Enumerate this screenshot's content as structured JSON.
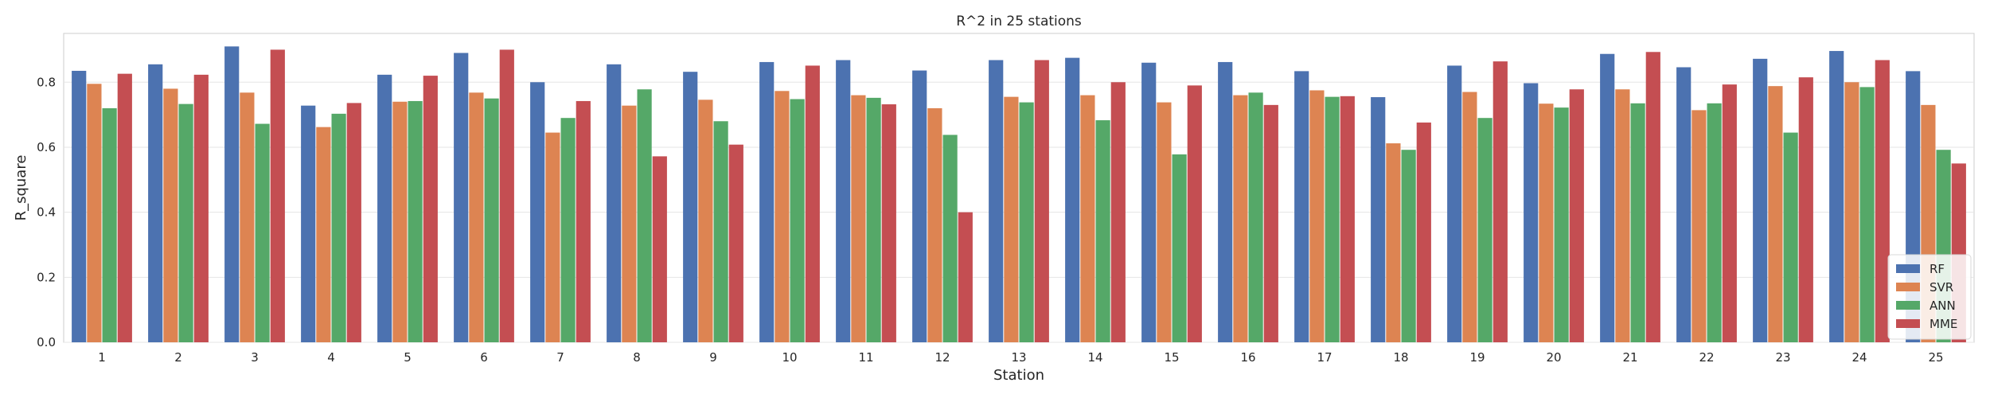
{
  "chart_data": {
    "type": "bar",
    "title": "R^2 in 25 stations",
    "xlabel": "Station",
    "ylabel": "R_square",
    "ylim": [
      0,
      0.95
    ],
    "yticks": [
      "0.0",
      "0.2",
      "0.4",
      "0.6",
      "0.8"
    ],
    "grid": "horizontal",
    "legend_position": "bottom-right",
    "categories": [
      "1",
      "2",
      "3",
      "4",
      "5",
      "6",
      "7",
      "8",
      "9",
      "10",
      "11",
      "12",
      "13",
      "14",
      "15",
      "16",
      "17",
      "18",
      "19",
      "20",
      "21",
      "22",
      "23",
      "24",
      "25"
    ],
    "series": [
      {
        "name": "RF",
        "color": "#4c72b0",
        "values": [
          0.835,
          0.855,
          0.91,
          0.728,
          0.823,
          0.89,
          0.8,
          0.855,
          0.832,
          0.862,
          0.868,
          0.836,
          0.868,
          0.875,
          0.86,
          0.862,
          0.834,
          0.754,
          0.851,
          0.797,
          0.887,
          0.846,
          0.872,
          0.896,
          0.834
        ]
      },
      {
        "name": "SVR",
        "color": "#dd8452",
        "values": [
          0.795,
          0.78,
          0.768,
          0.662,
          0.74,
          0.768,
          0.645,
          0.728,
          0.746,
          0.773,
          0.76,
          0.72,
          0.755,
          0.76,
          0.738,
          0.76,
          0.775,
          0.612,
          0.77,
          0.734,
          0.778,
          0.714,
          0.788,
          0.8,
          0.73
        ]
      },
      {
        "name": "ANN",
        "color": "#55a868",
        "values": [
          0.72,
          0.733,
          0.672,
          0.703,
          0.742,
          0.75,
          0.69,
          0.778,
          0.68,
          0.748,
          0.752,
          0.638,
          0.738,
          0.683,
          0.578,
          0.768,
          0.755,
          0.592,
          0.69,
          0.722,
          0.735,
          0.735,
          0.645,
          0.785,
          0.592
        ]
      },
      {
        "name": "MME",
        "color": "#c44e52",
        "values": [
          0.826,
          0.823,
          0.9,
          0.736,
          0.82,
          0.9,
          0.742,
          0.572,
          0.608,
          0.851,
          0.732,
          0.4,
          0.868,
          0.8,
          0.79,
          0.73,
          0.757,
          0.676,
          0.864,
          0.778,
          0.893,
          0.793,
          0.815,
          0.868,
          0.55
        ]
      }
    ]
  }
}
